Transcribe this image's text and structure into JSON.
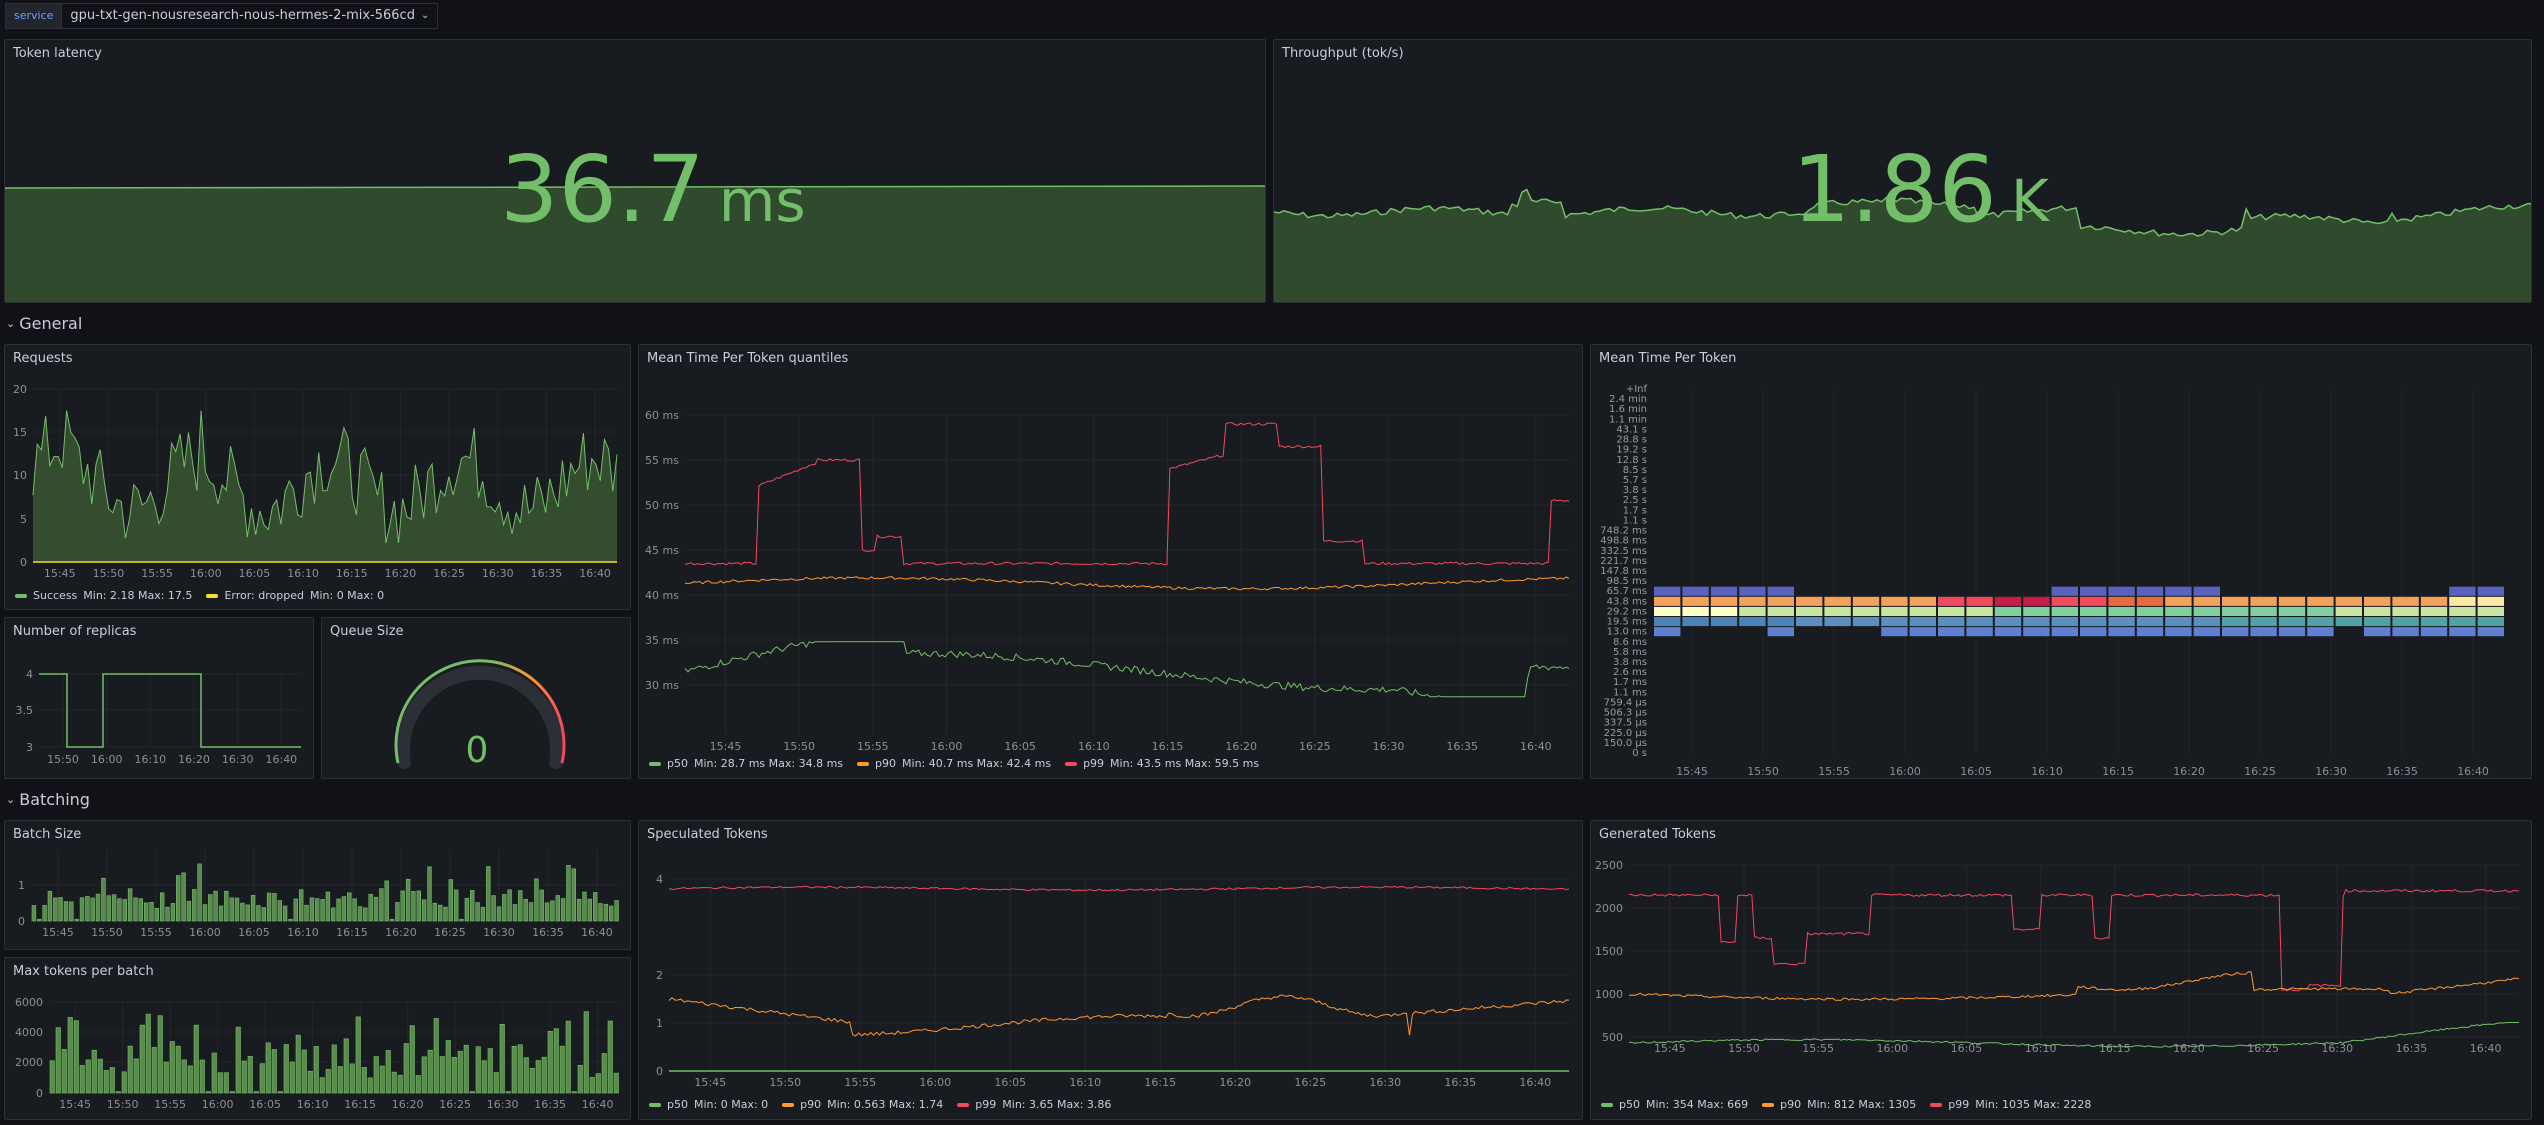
{
  "variables": {
    "label": "service",
    "value": "gpu-txt-gen-nousresearch-nous-hermes-2-mix-566cd"
  },
  "stats": {
    "latency": {
      "title": "Token latency",
      "value": "36.7",
      "unit": "ms"
    },
    "throughput": {
      "title": "Throughput (tok/s)",
      "value": "1.86",
      "unit": "K"
    }
  },
  "rows": {
    "general": "General",
    "batching": "Batching"
  },
  "time_ticks": [
    "15:45",
    "15:50",
    "15:55",
    "16:00",
    "16:05",
    "16:10",
    "16:15",
    "16:20",
    "16:25",
    "16:30",
    "16:35",
    "16:40"
  ],
  "colors": {
    "green": "#73bf69",
    "orange": "#ff9830",
    "red": "#f2495c",
    "yellow": "#fade2a"
  },
  "requests": {
    "title": "Requests",
    "y_ticks": [
      "20",
      "15",
      "10",
      "5",
      "0"
    ],
    "legend": [
      {
        "name": "Success",
        "stats": "Min: 2.18   Max: 17.5",
        "color": "#73bf69"
      },
      {
        "name": "Error: dropped",
        "stats": "Min: 0   Max: 0",
        "color": "#fade2a"
      }
    ]
  },
  "replicas": {
    "title": "Number of replicas",
    "y_ticks": [
      "4",
      "3.5",
      "3"
    ],
    "x_ticks": [
      "15:50",
      "16:00",
      "16:10",
      "16:20",
      "16:30",
      "16:40"
    ]
  },
  "queue": {
    "title": "Queue Size",
    "value": "0"
  },
  "mtpt_quantiles": {
    "title": "Mean Time Per Token quantiles",
    "y_ticks": [
      "60 ms",
      "55 ms",
      "50 ms",
      "45 ms",
      "40 ms",
      "35 ms",
      "30 ms"
    ],
    "legend": [
      {
        "name": "p50",
        "stats": "Min: 28.7 ms   Max: 34.8 ms",
        "color": "#73bf69"
      },
      {
        "name": "p90",
        "stats": "Min: 40.7 ms   Max: 42.4 ms",
        "color": "#ff9830"
      },
      {
        "name": "p99",
        "stats": "Min: 43.5 ms   Max: 59.5 ms",
        "color": "#f2495c"
      }
    ]
  },
  "heatmap": {
    "title": "Mean Time Per Token",
    "y_buckets": [
      "+Inf",
      "2.4 min",
      "1.6 min",
      "1.1 min",
      "43.1 s",
      "28.8 s",
      "19.2 s",
      "12.8 s",
      "8.5 s",
      "5.7 s",
      "3.8 s",
      "2.5 s",
      "1.7 s",
      "1.1 s",
      "748.2 ms",
      "498.8 ms",
      "332.5 ms",
      "221.7 ms",
      "147.8 ms",
      "98.5 ms",
      "65.7 ms",
      "43.8 ms",
      "29.2 ms",
      "19.5 ms",
      "13.0 ms",
      "8.6 ms",
      "5.8 ms",
      "3.8 ms",
      "2.6 ms",
      "1.7 ms",
      "1.1 ms",
      "759.4 µs",
      "506.3 µs",
      "337.5 µs",
      "225.0 µs",
      "150.0 µs",
      "0 s"
    ]
  },
  "batch_size": {
    "title": "Batch Size",
    "y_ticks": [
      "1",
      "0"
    ]
  },
  "max_tokens": {
    "title": "Max tokens per batch",
    "y_ticks": [
      "6000",
      "4000",
      "2000",
      "0"
    ]
  },
  "speculated": {
    "title": "Speculated Tokens",
    "y_ticks": [
      "4",
      "2",
      "1",
      "0"
    ],
    "legend": [
      {
        "name": "p50",
        "stats": "Min: 0   Max: 0",
        "color": "#73bf69"
      },
      {
        "name": "p90",
        "stats": "Min: 0.563   Max: 1.74",
        "color": "#ff9830"
      },
      {
        "name": "p99",
        "stats": "Min: 3.65   Max: 3.86",
        "color": "#f2495c"
      }
    ]
  },
  "generated": {
    "title": "Generated Tokens",
    "y_ticks": [
      "2500",
      "2000",
      "1500",
      "1000",
      "500"
    ],
    "legend": [
      {
        "name": "p50",
        "stats": "Min: 354   Max: 669",
        "color": "#73bf69"
      },
      {
        "name": "p90",
        "stats": "Min: 812   Max: 1305",
        "color": "#ff9830"
      },
      {
        "name": "p99",
        "stats": "Min: 1035   Max: 2228",
        "color": "#f2495c"
      }
    ]
  }
}
